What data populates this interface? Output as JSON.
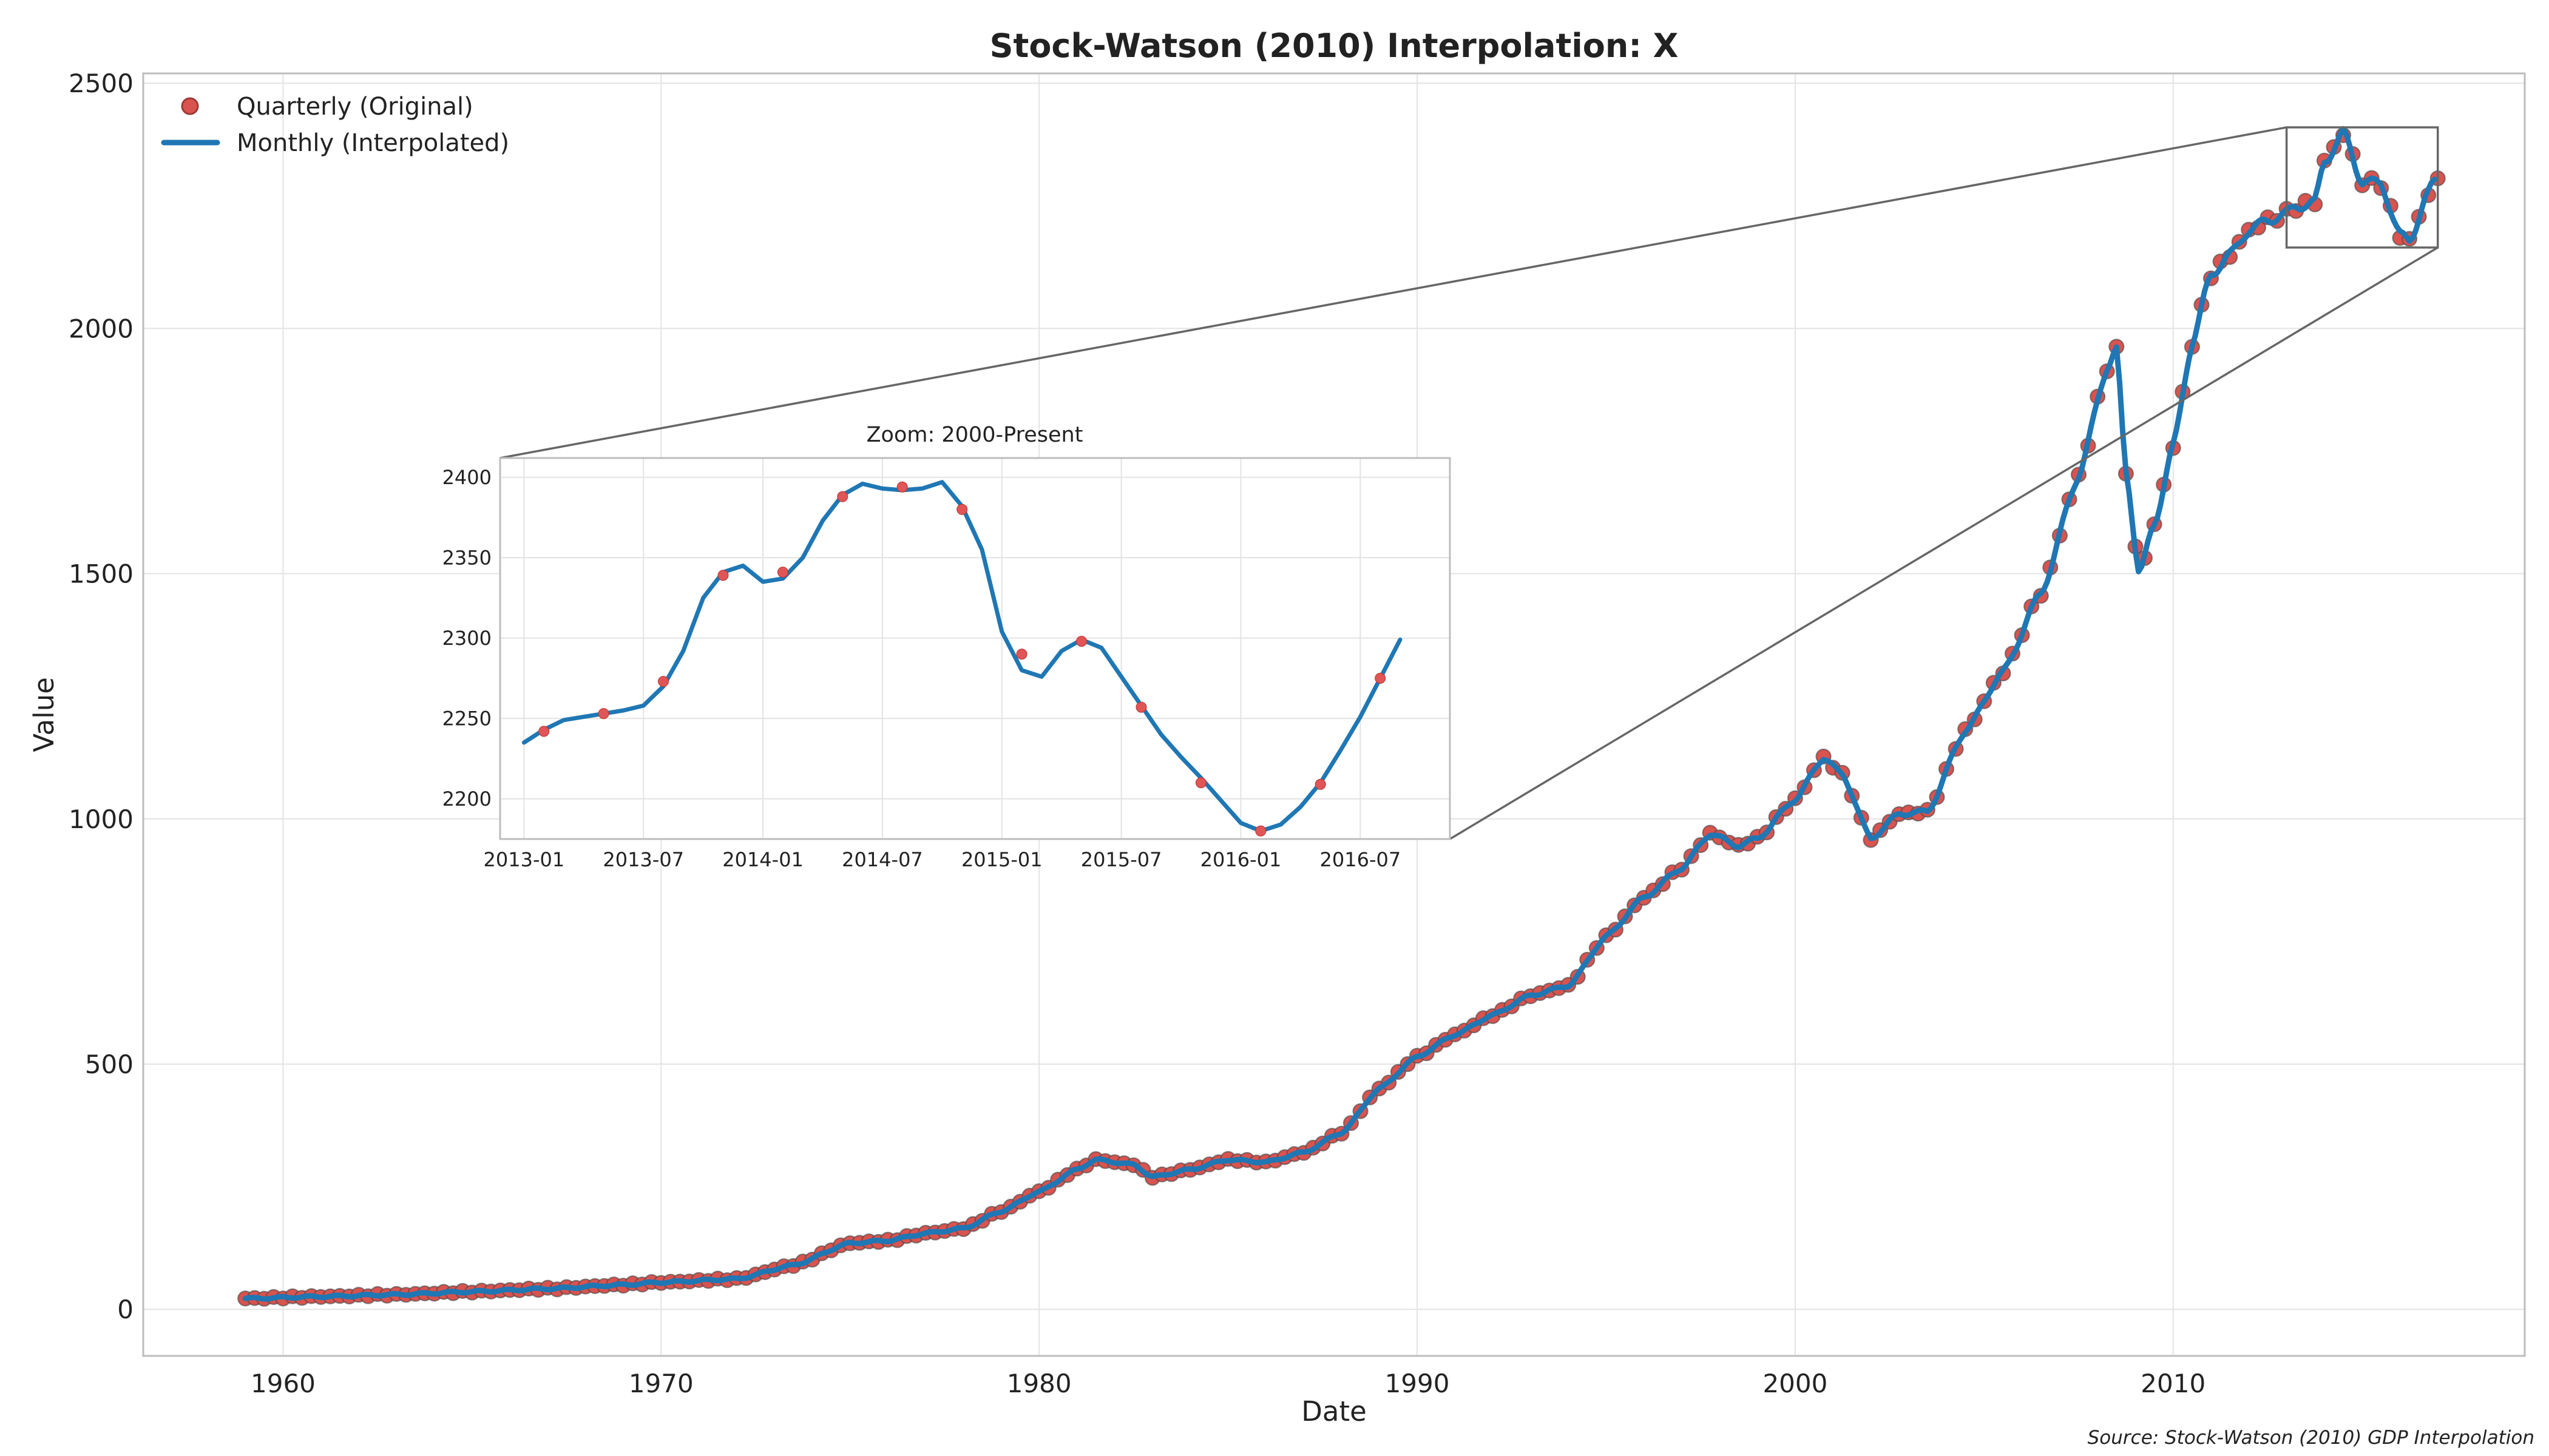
{
  "chart_data": [
    {
      "type": "line",
      "title": "Stock-Watson (2010) Interpolation: X",
      "xlabel": "Date",
      "ylabel": "Value",
      "xlim": [
        1956.3,
        2019.3
      ],
      "ylim": [
        -95,
        2520
      ],
      "x_ticks": [
        1960,
        1970,
        1980,
        1990,
        2000,
        2010
      ],
      "x_tick_labels": [
        "1960",
        "1970",
        "1980",
        "1990",
        "2000",
        "2010"
      ],
      "y_ticks": [
        0,
        500,
        1000,
        1500,
        2000,
        2500
      ],
      "y_tick_labels": [
        "0",
        "500",
        "1000",
        "1500",
        "2000",
        "2500"
      ],
      "grid": true,
      "legend_position": "top-left",
      "colors": {
        "points": "#d9534f",
        "line": "#1f77b4"
      },
      "series": [
        {
          "name": "Quarterly (Original)",
          "kind": "scatter",
          "ref": "anchors"
        },
        {
          "name": "Monthly (Interpolated)",
          "kind": "line",
          "ref": "anchors"
        }
      ],
      "anchors": [
        [
          1959.0,
          22
        ],
        [
          1961.0,
          26
        ],
        [
          1963.0,
          30
        ],
        [
          1965.0,
          36
        ],
        [
          1967.0,
          42
        ],
        [
          1969.0,
          50
        ],
        [
          1970.0,
          55
        ],
        [
          1972.0,
          62
        ],
        [
          1973.5,
          90
        ],
        [
          1975.0,
          135
        ],
        [
          1976.0,
          140
        ],
        [
          1977.0,
          155
        ],
        [
          1978.0,
          165
        ],
        [
          1979.0,
          200
        ],
        [
          1980.0,
          240
        ],
        [
          1981.0,
          285
        ],
        [
          1981.5,
          305
        ],
        [
          1982.5,
          295
        ],
        [
          1983.0,
          270
        ],
        [
          1984.0,
          285
        ],
        [
          1985.0,
          305
        ],
        [
          1986.0,
          300
        ],
        [
          1987.0,
          320
        ],
        [
          1988.0,
          360
        ],
        [
          1989.0,
          450
        ],
        [
          1990.0,
          515
        ],
        [
          1991.0,
          560
        ],
        [
          1992.0,
          600
        ],
        [
          1993.0,
          640
        ],
        [
          1994.0,
          660
        ],
        [
          1995.0,
          760
        ],
        [
          1996.0,
          840
        ],
        [
          1997.0,
          900
        ],
        [
          1997.75,
          970
        ],
        [
          1998.5,
          945
        ],
        [
          1999.0,
          960
        ],
        [
          2000.0,
          1040
        ],
        [
          2000.75,
          1125
        ],
        [
          2001.25,
          1090
        ],
        [
          2002.0,
          960
        ],
        [
          2002.75,
          1010
        ],
        [
          2003.5,
          1015
        ],
        [
          2004.5,
          1180
        ],
        [
          2005.5,
          1300
        ],
        [
          2006.5,
          1460
        ],
        [
          2007.5,
          1700
        ],
        [
          2008.25,
          1920
        ],
        [
          2008.5,
          1955
        ],
        [
          2008.75,
          1710
        ],
        [
          2009.1,
          1500
        ],
        [
          2009.5,
          1600
        ],
        [
          2010.0,
          1760
        ],
        [
          2010.5,
          1970
        ],
        [
          2011.0,
          2110
        ],
        [
          2011.5,
          2150
        ],
        [
          2012.0,
          2200
        ],
        [
          2012.5,
          2220
        ],
        [
          2013.0,
          2235
        ],
        [
          2013.25,
          2248
        ],
        [
          2013.75,
          2258
        ],
        [
          2014.0,
          2340
        ],
        [
          2014.5,
          2398
        ],
        [
          2015.0,
          2300
        ],
        [
          2015.5,
          2295
        ],
        [
          2016.0,
          2190
        ],
        [
          2016.25,
          2180
        ],
        [
          2016.75,
          2275
        ],
        [
          2016.9,
          2300
        ]
      ]
    },
    {
      "type": "line",
      "title": "Zoom: 2000-Present",
      "ylim": [
        2175,
        2412
      ],
      "y_ticks": [
        2200,
        2250,
        2300,
        2350,
        2400
      ],
      "y_tick_labels": [
        "2200",
        "2250",
        "2300",
        "2350",
        "2400"
      ],
      "x_tick_labels": [
        "2013-01",
        "2013-07",
        "2014-01",
        "2014-07",
        "2015-01",
        "2015-07",
        "2016-01",
        "2016-07"
      ],
      "monthly": {
        "start": "2013-01",
        "values": [
          2235,
          2243,
          2249,
          2251,
          2253,
          2255,
          2258,
          2270,
          2292,
          2325,
          2341,
          2345,
          2335,
          2337,
          2350,
          2373,
          2389,
          2396,
          2393,
          2392,
          2393,
          2397,
          2382,
          2355,
          2304,
          2280,
          2276,
          2292,
          2299,
          2294,
          2276,
          2258,
          2240,
          2226,
          2213,
          2199,
          2185,
          2180,
          2184,
          2195,
          2210,
          2230,
          2251,
          2275,
          2299
        ]
      },
      "quarterly": {
        "start": "2013-02",
        "values": [
          2242,
          2253,
          2273,
          2339,
          2341,
          2388,
          2394,
          2380,
          2290,
          2298,
          2257,
          2210,
          2180,
          2209,
          2275
        ]
      }
    }
  ],
  "legend": {
    "points_label": "Quarterly (Original)",
    "line_label": "Monthly (Interpolated)"
  },
  "source": "Source: Stock-Watson (2010) GDP Interpolation"
}
